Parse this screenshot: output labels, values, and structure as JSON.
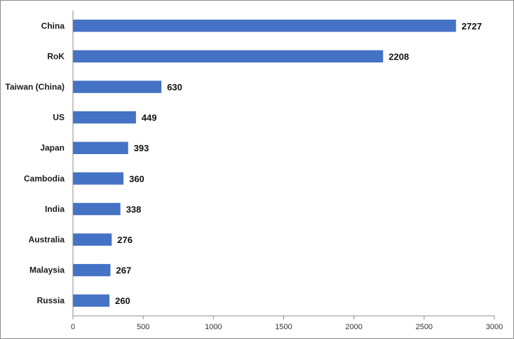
{
  "chart_data": {
    "type": "bar",
    "orientation": "horizontal",
    "categories": [
      "China",
      "RoK",
      "Taiwan (China)",
      "US",
      "Japan",
      "Cambodia",
      "India",
      "Australia",
      "Malaysia",
      "Russia"
    ],
    "values": [
      2727,
      2208,
      630,
      449,
      393,
      360,
      338,
      276,
      267,
      260
    ],
    "title": "",
    "xlabel": "",
    "ylabel": "",
    "xlim": [
      0,
      3000
    ],
    "xticks": [
      0,
      500,
      1000,
      1500,
      2000,
      2500,
      3000
    ],
    "grid": false,
    "legend": "none",
    "bar_color": "#4472c4",
    "data_labels": true
  }
}
